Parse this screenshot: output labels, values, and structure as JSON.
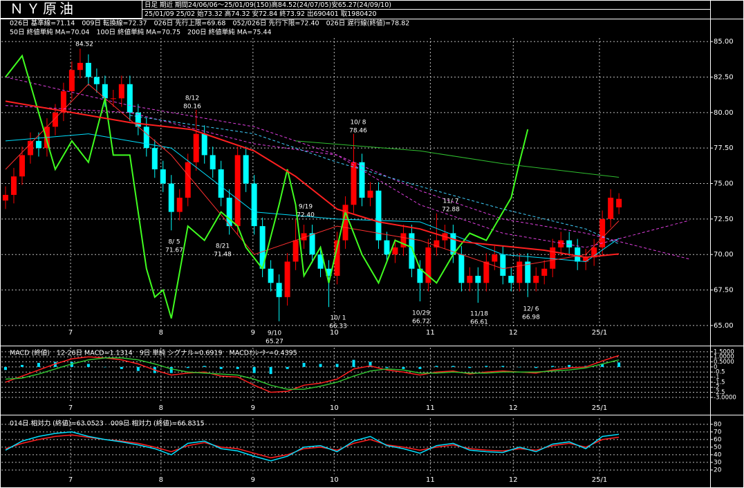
{
  "header": {
    "title": "ＮＹ原油",
    "info1": "日足 期近 期間24/06/06～25/01/09(150)高84.52(24/07/05)安65.27(24/09/10)",
    "info2": "25/01/09 25/02 始73.32 高74.32 安72.84 終73.92 出690401 取1980420"
  },
  "chart_data": [
    {
      "type": "candlestick",
      "x": [
        0,
        2,
        4,
        6,
        8,
        10,
        12,
        14,
        16,
        18,
        20,
        22,
        24,
        26,
        28,
        30,
        32,
        34,
        36,
        38,
        40,
        42,
        44,
        46,
        48,
        50,
        52,
        54,
        56,
        58,
        60,
        62,
        64,
        66,
        68,
        70,
        72,
        74,
        76,
        78,
        80,
        82,
        84,
        86,
        88,
        90,
        92,
        94,
        96,
        98,
        100,
        102,
        104,
        106,
        108,
        110,
        112,
        114,
        116,
        118,
        120,
        122,
        124,
        126,
        128,
        130,
        132,
        134,
        136,
        138,
        140,
        142,
        144,
        146,
        148
      ],
      "open": [
        73.8,
        74.2,
        75.5,
        77.0,
        78.0,
        77.5,
        79.0,
        80.0,
        81.5,
        83.0,
        83.5,
        82.5,
        82.0,
        81.0,
        81.0,
        82.0,
        80.0,
        79.0,
        77.5,
        76.0,
        75.0,
        73.0,
        74.0,
        76.5,
        78.5,
        77.0,
        76.0,
        74.0,
        72.0,
        77.0,
        75.0,
        72.0,
        69.0,
        68.0,
        67.0,
        69.5,
        71.0,
        71.5,
        70.0,
        69.0,
        68.5,
        71.0,
        73.5,
        76.5,
        74.0,
        74.5,
        71.0,
        70.0,
        70.5,
        71.5,
        69.0,
        68.0,
        70.5,
        71.0,
        71.5,
        70.0,
        68.0,
        68.5,
        68.0,
        69.5,
        70.0,
        68.5,
        68.0,
        69.5,
        68.0,
        68.5,
        69.0,
        70.5,
        71.0,
        70.5,
        69.5,
        69.8,
        70.5,
        72.5,
        73.32
      ],
      "high": [
        74.8,
        76.1,
        77.6,
        78.6,
        78.6,
        79.6,
        80.6,
        82.1,
        83.6,
        84.5,
        84.1,
        83.1,
        82.6,
        81.6,
        82.6,
        82.6,
        80.6,
        79.6,
        78.1,
        76.6,
        75.6,
        74.6,
        77.1,
        80.2,
        79.1,
        77.6,
        76.6,
        74.6,
        77.6,
        77.6,
        75.6,
        72.6,
        69.6,
        68.6,
        70.1,
        72.5,
        72.1,
        72.1,
        70.6,
        69.6,
        71.6,
        74.1,
        78.5,
        77.1,
        75.1,
        75.1,
        71.6,
        71.1,
        72.1,
        72.1,
        69.6,
        71.1,
        72.9,
        72.1,
        72.1,
        70.6,
        69.1,
        69.1,
        70.1,
        70.6,
        70.6,
        69.1,
        70.1,
        70.1,
        69.1,
        69.6,
        71.1,
        71.6,
        71.6,
        71.1,
        70.4,
        71.1,
        73.1,
        74.6,
        74.32
      ],
      "low": [
        73.2,
        73.6,
        74.9,
        76.4,
        76.9,
        76.9,
        78.4,
        79.4,
        80.9,
        82.4,
        81.9,
        81.4,
        80.4,
        80.4,
        80.4,
        79.4,
        78.4,
        76.9,
        75.4,
        74.4,
        71.7,
        72.4,
        73.4,
        75.9,
        76.4,
        75.4,
        73.4,
        71.4,
        71.4,
        74.4,
        71.4,
        68.4,
        67.4,
        65.3,
        66.4,
        68.9,
        70.4,
        69.4,
        68.4,
        66.3,
        67.9,
        70.4,
        72.9,
        73.4,
        73.4,
        70.4,
        69.4,
        69.4,
        69.9,
        68.4,
        66.7,
        67.4,
        69.9,
        70.4,
        69.4,
        67.4,
        67.4,
        66.6,
        67.4,
        68.9,
        67.9,
        67.4,
        67.4,
        67.0,
        67.4,
        67.9,
        68.4,
        69.9,
        69.9,
        68.9,
        68.9,
        69.2,
        69.9,
        71.9,
        72.84
      ],
      "close": [
        74.2,
        75.5,
        77.0,
        78.0,
        77.5,
        79.0,
        80.0,
        81.5,
        83.0,
        83.5,
        82.5,
        82.0,
        81.0,
        81.0,
        82.0,
        80.0,
        79.0,
        77.5,
        76.0,
        75.0,
        73.0,
        74.0,
        76.5,
        78.5,
        77.0,
        76.0,
        74.0,
        72.0,
        77.0,
        75.0,
        72.0,
        69.0,
        68.0,
        67.0,
        69.5,
        71.0,
        71.5,
        70.0,
        69.0,
        68.5,
        71.0,
        73.5,
        76.5,
        74.0,
        74.5,
        71.0,
        70.0,
        70.5,
        71.5,
        69.0,
        68.0,
        70.5,
        71.0,
        71.5,
        70.0,
        68.0,
        68.5,
        68.0,
        69.5,
        70.0,
        68.5,
        68.0,
        69.5,
        68.0,
        68.5,
        69.0,
        70.5,
        71.0,
        70.5,
        69.5,
        69.8,
        70.5,
        72.5,
        74.0,
        73.92
      ],
      "up_color": "#ff0000",
      "down_color": "#00ffff",
      "overlays": [
        {
          "name": "026日 基準線=71.14",
          "color": "#00e0ff",
          "width": 1,
          "dashed": false,
          "x": [
            0,
            20,
            40,
            60,
            80,
            100,
            120,
            140,
            148
          ],
          "values": [
            78,
            78.5,
            77.5,
            73,
            72.5,
            72.3,
            70,
            69.5,
            71.14
          ]
        },
        {
          "name": "009日 転換線=72.37",
          "color": "#ff3030",
          "width": 1,
          "dashed": false,
          "x": [
            0,
            20,
            40,
            60,
            80,
            100,
            120,
            140,
            148
          ],
          "values": [
            76,
            82,
            77,
            70,
            72,
            71,
            69,
            70,
            72.37
          ]
        },
        {
          "name": "026日 先行上限=69.68",
          "color": "#e040e0",
          "width": 1,
          "dashed": true,
          "x": [
            0,
            30,
            60,
            80,
            100,
            120,
            140,
            165
          ],
          "values": [
            82.5,
            80.5,
            79,
            77,
            74.5,
            72.5,
            71.5,
            69.68
          ]
        },
        {
          "name": "052/026日 先行下限=72.40",
          "color": "#e040e0",
          "width": 1,
          "dashed": true,
          "x": [
            0,
            30,
            60,
            80,
            100,
            120,
            140,
            165
          ],
          "values": [
            80.5,
            80,
            77.8,
            77,
            73.5,
            71.5,
            70.5,
            72.4
          ]
        },
        {
          "name": "026日 遅行線(終値)=78.82",
          "color": "#40ff20",
          "width": 2,
          "dashed": false,
          "x": [
            0,
            4,
            8,
            12,
            16,
            20,
            24,
            26,
            30,
            34,
            36,
            38,
            40,
            44,
            48,
            52,
            56,
            58,
            62,
            66,
            68,
            70,
            72,
            76,
            78,
            82,
            86,
            90,
            94,
            98,
            100,
            104,
            108,
            112,
            116,
            120,
            122,
            124,
            126
          ],
          "values": [
            82.5,
            84,
            80,
            76,
            78,
            76.5,
            81,
            77,
            77,
            69,
            67,
            67.5,
            65.5,
            72,
            71,
            73,
            72,
            70.5,
            69,
            73.5,
            76,
            73.5,
            68.5,
            70.5,
            68,
            73,
            70,
            68,
            71,
            70.5,
            69,
            68,
            70,
            71.5,
            71,
            73,
            74,
            76.5,
            78.82
          ]
        },
        {
          "name": "50日 終値単純 MA=70.04",
          "color": "#ff2020",
          "width": 2,
          "dashed": false,
          "x": [
            0,
            20,
            30,
            45,
            60,
            70,
            80,
            90,
            100,
            110,
            120,
            130,
            140,
            148
          ],
          "values": [
            80.8,
            79.8,
            79.3,
            78.8,
            77.3,
            75.5,
            73.2,
            72.3,
            71.8,
            70.9,
            70.6,
            70.3,
            69.8,
            70.04
          ]
        },
        {
          "name": "100日 終値単純 MA=70.75",
          "color": "#40d0ff",
          "width": 1,
          "dashed": true,
          "x": [
            30,
            60,
            80,
            100,
            120,
            140,
            148
          ],
          "values": [
            79.8,
            78.5,
            76.5,
            74.8,
            73.2,
            71.8,
            70.75
          ]
        },
        {
          "name": "200日 終値単純 MA=75.44",
          "color": "#30c030",
          "width": 1,
          "dashed": false,
          "x": [
            70,
            100,
            120,
            148
          ],
          "values": [
            78,
            77.3,
            76.4,
            75.44
          ]
        }
      ],
      "annotations": [
        {
          "price": "84.52",
          "color": "#ff2020"
        },
        {
          "date": "8/12",
          "price": "80.16",
          "color": "#ff2020"
        },
        {
          "date": "10/ 8",
          "price": "78.46",
          "color": "#ff2020"
        },
        {
          "date": "9/19",
          "price": "72.40",
          "color": "#ff2020"
        },
        {
          "date": "11/ 7",
          "price": "72.88",
          "color": "#ff2020"
        },
        {
          "date": "8/ 5",
          "price": "71.67",
          "color": "#00e0ff"
        },
        {
          "date": "8/21",
          "price": "71.48",
          "color": "#00e0ff"
        },
        {
          "date": "9/10",
          "price": "65.27",
          "color": "#00e0ff"
        },
        {
          "date": "10/ 1",
          "price": "66.33",
          "color": "#00e0ff"
        },
        {
          "date": "10/29",
          "price": "66.72",
          "color": "#00e0ff"
        },
        {
          "date": "11/18",
          "price": "66.61",
          "color": "#00e0ff"
        },
        {
          "date": "12/ 6",
          "price": "66.98",
          "color": "#00e0ff"
        }
      ],
      "xlim": [
        -1,
        170
      ],
      "xticks": [
        {
          "value": 15.7,
          "label": "7"
        },
        {
          "value": 37.5,
          "label": "8"
        },
        {
          "value": 59.7,
          "label": "9"
        },
        {
          "value": 79.3,
          "label": "10"
        },
        {
          "value": 102.5,
          "label": "11"
        },
        {
          "value": 122.5,
          "label": "12"
        },
        {
          "value": 143.3,
          "label": "25/1"
        }
      ],
      "ylim": [
        64.8,
        85.25
      ],
      "yticks": [
        {
          "value": 65,
          "label": "65.00"
        },
        {
          "value": 67.5,
          "label": "67.50"
        },
        {
          "value": 70,
          "label": "70.00"
        },
        {
          "value": 72.5,
          "label": "72.50"
        },
        {
          "value": 75,
          "label": "75.00"
        },
        {
          "value": 77.5,
          "label": "77.50"
        },
        {
          "value": 80,
          "label": "80.00"
        },
        {
          "value": 82.5,
          "label": "82.50"
        },
        {
          "value": 85,
          "label": "85.00"
        }
      ],
      "grid": true
    },
    {
      "type": "line",
      "title": "MACD (終値)",
      "x": [
        0,
        4,
        8,
        12,
        16,
        20,
        24,
        28,
        32,
        36,
        40,
        44,
        48,
        52,
        56,
        60,
        64,
        68,
        72,
        76,
        80,
        84,
        88,
        92,
        96,
        100,
        104,
        108,
        112,
        116,
        120,
        124,
        128,
        132,
        136,
        140,
        144,
        148
      ],
      "series": [
        {
          "name": "12-26日 MACD=1.1314",
          "color": "#ff2020",
          "style": "line",
          "values": [
            -1.5,
            -0.9,
            -0.3,
            0.3,
            0.8,
            1.0,
            0.9,
            0.7,
            0.3,
            -0.3,
            -0.8,
            -0.6,
            -0.5,
            -0.9,
            -1.0,
            -1.8,
            -2.5,
            -2.4,
            -1.8,
            -1.6,
            -1.2,
            -0.2,
            0.1,
            -0.3,
            -0.5,
            -0.8,
            -0.5,
            -0.4,
            -0.7,
            -0.5,
            -0.4,
            -0.5,
            -0.6,
            -0.3,
            -0.1,
            0.0,
            0.6,
            1.1314
          ]
        },
        {
          "name": "9日 単純 シグナル=0.6919",
          "color": "#30c030",
          "style": "line",
          "values": [
            -1.2,
            -1.1,
            -0.7,
            -0.2,
            0.3,
            0.7,
            0.9,
            0.9,
            0.7,
            0.3,
            -0.2,
            -0.5,
            -0.6,
            -0.7,
            -0.8,
            -1.2,
            -1.8,
            -2.2,
            -2.2,
            -1.9,
            -1.5,
            -0.9,
            -0.4,
            -0.2,
            -0.3,
            -0.6,
            -0.6,
            -0.5,
            -0.6,
            -0.6,
            -0.5,
            -0.5,
            -0.5,
            -0.4,
            -0.3,
            -0.1,
            0.3,
            0.6919
          ]
        },
        {
          "name": "MACDｵｼﾚｰﾀｰ=0.4395",
          "color": "#00e0ff",
          "style": "bar",
          "values": [
            -0.3,
            0.2,
            0.4,
            0.5,
            0.5,
            0.3,
            0.0,
            -0.2,
            -0.4,
            -0.6,
            -0.6,
            -0.1,
            0.1,
            -0.2,
            -0.2,
            -0.6,
            -0.7,
            -0.2,
            0.4,
            0.3,
            0.3,
            0.7,
            0.5,
            -0.1,
            -0.2,
            -0.2,
            0.1,
            0.1,
            -0.1,
            0.1,
            0.1,
            0.0,
            -0.1,
            0.1,
            0.2,
            0.1,
            0.3,
            0.4395
          ]
        }
      ],
      "xlim": [
        -1,
        170
      ],
      "xticks": [
        {
          "value": 15.7,
          "label": "7"
        },
        {
          "value": 37.5,
          "label": "8"
        },
        {
          "value": 59.7,
          "label": "9"
        },
        {
          "value": 79.3,
          "label": "10"
        },
        {
          "value": 102.5,
          "label": "11"
        },
        {
          "value": 122.5,
          "label": "12"
        },
        {
          "value": 143.3,
          "label": "25/1"
        }
      ],
      "ylim": [
        -3.35,
        1.9
      ],
      "yticks": [
        {
          "value": 1.5,
          "label": "1.5000"
        },
        {
          "value": 1,
          "label": "1.0000"
        },
        {
          "value": 0.5,
          "label": "0.5000"
        },
        0,
        -0.5,
        -1,
        -1.5,
        -2,
        -2.5,
        {
          "value": -3,
          "label": "-3.0000"
        }
      ],
      "grid": true
    },
    {
      "type": "line",
      "x": [
        0,
        4,
        8,
        12,
        16,
        20,
        24,
        28,
        32,
        36,
        40,
        44,
        48,
        52,
        56,
        60,
        64,
        68,
        72,
        76,
        80,
        84,
        88,
        92,
        96,
        100,
        104,
        108,
        112,
        116,
        120,
        124,
        128,
        132,
        136,
        140,
        144,
        148
      ],
      "series": [
        {
          "name": "014日 相対力 (終値)=63.0523",
          "color": "#ff2020",
          "style": "line",
          "values": [
            48,
            55,
            60,
            64,
            66,
            63,
            60,
            58,
            55,
            50,
            44,
            52,
            56,
            50,
            48,
            42,
            36,
            40,
            48,
            50,
            46,
            55,
            60,
            53,
            50,
            46,
            50,
            53,
            48,
            46,
            45,
            48,
            46,
            52,
            55,
            50,
            60,
            63.0523
          ]
        },
        {
          "name": "009日 相対力 (終値)=66.8315",
          "color": "#00e0ff",
          "style": "line",
          "values": [
            46,
            58,
            64,
            68,
            70,
            64,
            60,
            57,
            53,
            48,
            40,
            55,
            58,
            48,
            45,
            38,
            32,
            38,
            50,
            52,
            44,
            58,
            64,
            52,
            48,
            42,
            52,
            55,
            46,
            44,
            43,
            50,
            44,
            54,
            57,
            48,
            64,
            66.8315
          ]
        }
      ],
      "xlim": [
        -1,
        170
      ],
      "xticks": [
        {
          "value": 15.7,
          "label": "7"
        },
        {
          "value": 37.5,
          "label": "8"
        },
        {
          "value": 59.7,
          "label": "9"
        },
        {
          "value": 79.3,
          "label": "10"
        },
        {
          "value": 102.5,
          "label": "11"
        },
        {
          "value": 122.5,
          "label": "12"
        },
        {
          "value": 143.3,
          "label": "25/1"
        }
      ],
      "ylim": [
        14.5,
        88
      ],
      "yticks": [
        20,
        30,
        40,
        50,
        60,
        70,
        80
      ],
      "grid": true
    }
  ]
}
